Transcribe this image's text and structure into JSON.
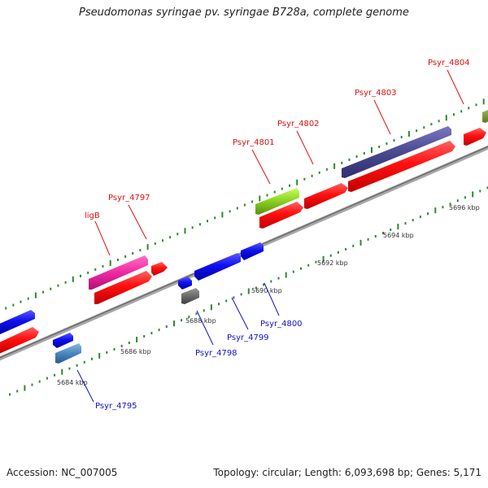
{
  "title": "Pseudomonas syringae pv. syringae B728a, complete genome",
  "footer": {
    "accession": "Accession: NC_007005",
    "topology": "Topology: circular; Length: 6,093,698 bp; Genes: 5,171"
  },
  "colors": {
    "forward_label": "#dd1111",
    "reverse_label": "#1111cc",
    "backbone": "#808080",
    "tick": "#2a8a2a"
  },
  "scale_labels": [
    "5684 kbp",
    "5686 kbp",
    "5688 kbp",
    "5690 kbp",
    "5692 kbp",
    "5694 kbp",
    "5696 kbp"
  ],
  "gene_labels": {
    "forward": [
      "ligB",
      "Psyr_4797",
      "Psyr_4801",
      "Psyr_4802",
      "Psyr_4803",
      "Psyr_4804"
    ],
    "reverse": [
      "Psyr_4795",
      "Psyr_4798",
      "Psyr_4799",
      "Psyr_4800"
    ]
  }
}
